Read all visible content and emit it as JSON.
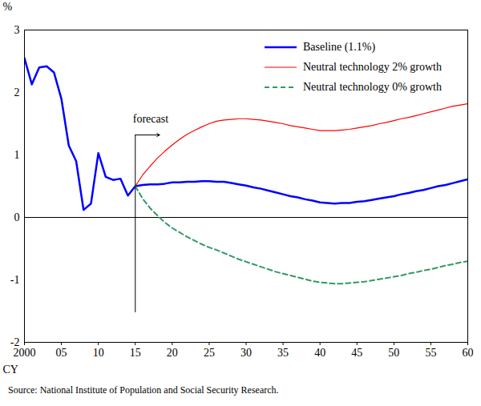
{
  "chart_data": {
    "type": "line",
    "x": [
      2000,
      2001,
      2002,
      2003,
      2004,
      2005,
      2006,
      2007,
      2008,
      2009,
      2010,
      2011,
      2012,
      2013,
      2014,
      2015,
      2016,
      2017,
      2018,
      2019,
      2020,
      2021,
      2022,
      2023,
      2024,
      2025,
      2026,
      2027,
      2028,
      2029,
      2030,
      2031,
      2032,
      2033,
      2034,
      2035,
      2036,
      2037,
      2038,
      2039,
      2040,
      2041,
      2042,
      2043,
      2044,
      2045,
      2046,
      2047,
      2048,
      2049,
      2050,
      2051,
      2052,
      2053,
      2054,
      2055,
      2056,
      2057,
      2058,
      2059,
      2060
    ],
    "series": [
      {
        "name": "Baseline (1.1%)",
        "color": "#0000ff",
        "line_style": "solid",
        "values": [
          2.55,
          2.13,
          2.4,
          2.42,
          2.32,
          1.9,
          1.15,
          0.9,
          0.12,
          0.22,
          1.03,
          0.65,
          0.6,
          0.62,
          0.35,
          0.5,
          0.52,
          0.53,
          0.53,
          0.54,
          0.56,
          0.56,
          0.57,
          0.57,
          0.58,
          0.58,
          0.57,
          0.57,
          0.55,
          0.53,
          0.51,
          0.48,
          0.46,
          0.43,
          0.4,
          0.37,
          0.34,
          0.32,
          0.29,
          0.27,
          0.24,
          0.23,
          0.22,
          0.23,
          0.23,
          0.25,
          0.26,
          0.28,
          0.3,
          0.32,
          0.34,
          0.37,
          0.39,
          0.42,
          0.44,
          0.47,
          0.5,
          0.52,
          0.55,
          0.58,
          0.61
        ]
      },
      {
        "name": "Neutral technology 2% growth",
        "color": "#ff0000",
        "line_style": "solid",
        "values": [
          null,
          null,
          null,
          null,
          null,
          null,
          null,
          null,
          null,
          null,
          null,
          null,
          null,
          null,
          null,
          0.5,
          0.68,
          0.82,
          0.95,
          1.06,
          1.16,
          1.25,
          1.33,
          1.39,
          1.45,
          1.5,
          1.54,
          1.56,
          1.57,
          1.58,
          1.58,
          1.57,
          1.56,
          1.54,
          1.52,
          1.5,
          1.47,
          1.45,
          1.43,
          1.41,
          1.39,
          1.39,
          1.39,
          1.4,
          1.41,
          1.43,
          1.45,
          1.47,
          1.5,
          1.52,
          1.55,
          1.58,
          1.6,
          1.63,
          1.66,
          1.69,
          1.72,
          1.75,
          1.78,
          1.8,
          1.82
        ]
      },
      {
        "name": "Neutral technology 0% growth",
        "color": "#339966",
        "line_style": "dashed",
        "values": [
          null,
          null,
          null,
          null,
          null,
          null,
          null,
          null,
          null,
          null,
          null,
          null,
          null,
          null,
          null,
          0.5,
          0.3,
          0.15,
          0.03,
          -0.08,
          -0.17,
          -0.24,
          -0.31,
          -0.37,
          -0.43,
          -0.48,
          -0.52,
          -0.57,
          -0.62,
          -0.67,
          -0.71,
          -0.75,
          -0.79,
          -0.83,
          -0.87,
          -0.9,
          -0.93,
          -0.96,
          -0.99,
          -1.02,
          -1.04,
          -1.05,
          -1.06,
          -1.06,
          -1.05,
          -1.04,
          -1.03,
          -1.01,
          -0.99,
          -0.97,
          -0.95,
          -0.93,
          -0.9,
          -0.88,
          -0.85,
          -0.83,
          -0.8,
          -0.77,
          -0.75,
          -0.72,
          -0.7
        ]
      }
    ],
    "xlim": [
      2000,
      2060
    ],
    "xticks": [
      2000,
      {
        "value": 2005,
        "label": "05"
      },
      {
        "value": 2010,
        "label": "10"
      },
      {
        "value": 2015,
        "label": "15"
      },
      {
        "value": 2020,
        "label": "20"
      },
      {
        "value": 2025,
        "label": "25"
      },
      {
        "value": 2030,
        "label": "30"
      },
      {
        "value": 2035,
        "label": "35"
      },
      {
        "value": 2040,
        "label": "40"
      },
      {
        "value": 2045,
        "label": "45"
      },
      {
        "value": 2050,
        "label": "50"
      },
      {
        "value": 2055,
        "label": "55"
      },
      {
        "value": 2060,
        "label": "60"
      }
    ],
    "ylim": [
      -2,
      3
    ],
    "yticks": [
      -2,
      -1,
      0,
      1,
      2,
      3
    ],
    "x_label": "CY",
    "y_label": "%",
    "annotations": [
      {
        "text": "forecast",
        "x": 2015,
        "y": 1.32
      }
    ],
    "caption": "Source: National Institute of Population and Social Security Research.",
    "legend": "top-right",
    "grid": false
  }
}
